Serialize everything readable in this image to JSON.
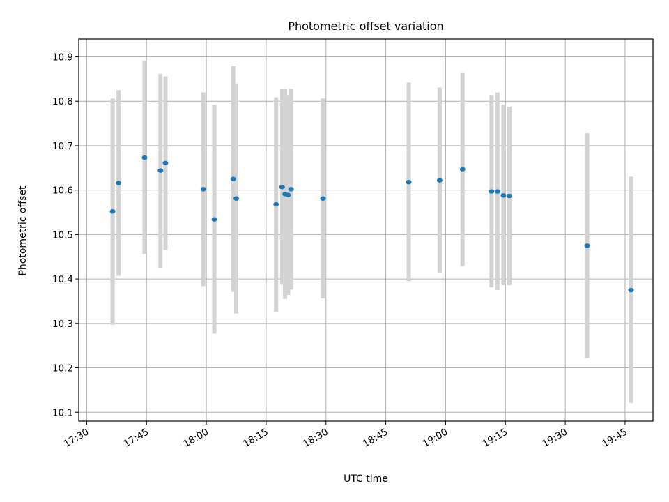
{
  "chart_data": {
    "type": "scatter",
    "title": "Photometric offset variation",
    "xlabel": "UTC time",
    "ylabel": "Photometric offset",
    "x_ticks": [
      "17:30",
      "17:45",
      "18:00",
      "18:15",
      "18:30",
      "18:45",
      "19:00",
      "19:15",
      "19:30",
      "19:45"
    ],
    "y_ticks": [
      "10.1",
      "10.2",
      "10.3",
      "10.4",
      "10.5",
      "10.6",
      "10.7",
      "10.8",
      "10.9"
    ],
    "xlim": [
      "17:28",
      "19:52"
    ],
    "ylim": [
      10.08,
      10.94
    ],
    "grid": true,
    "marker_color": "#1f77b4",
    "errorbar_color": "#d3d3d3",
    "points": [
      {
        "x": "17:36:30",
        "y": 10.552,
        "low": 10.297,
        "high": 10.806
      },
      {
        "x": "17:38:00",
        "y": 10.616,
        "low": 10.407,
        "high": 10.825
      },
      {
        "x": "17:44:30",
        "y": 10.673,
        "low": 10.456,
        "high": 10.891
      },
      {
        "x": "17:48:30",
        "y": 10.644,
        "low": 10.425,
        "high": 10.862
      },
      {
        "x": "17:49:45",
        "y": 10.661,
        "low": 10.465,
        "high": 10.856
      },
      {
        "x": "17:59:15",
        "y": 10.602,
        "low": 10.384,
        "high": 10.82
      },
      {
        "x": "18:02:00",
        "y": 10.534,
        "low": 10.277,
        "high": 10.791
      },
      {
        "x": "18:06:45",
        "y": 10.625,
        "low": 10.371,
        "high": 10.879
      },
      {
        "x": "18:07:30",
        "y": 10.581,
        "low": 10.322,
        "high": 10.84
      },
      {
        "x": "18:17:30",
        "y": 10.568,
        "low": 10.326,
        "high": 10.809
      },
      {
        "x": "18:19:00",
        "y": 10.607,
        "low": 10.387,
        "high": 10.827
      },
      {
        "x": "18:19:45",
        "y": 10.591,
        "low": 10.355,
        "high": 10.827
      },
      {
        "x": "18:20:30",
        "y": 10.589,
        "low": 10.364,
        "high": 10.814
      },
      {
        "x": "18:21:15",
        "y": 10.602,
        "low": 10.376,
        "high": 10.828
      },
      {
        "x": "18:29:15",
        "y": 10.581,
        "low": 10.356,
        "high": 10.806
      },
      {
        "x": "18:50:45",
        "y": 10.618,
        "low": 10.395,
        "high": 10.842
      },
      {
        "x": "18:58:30",
        "y": 10.622,
        "low": 10.413,
        "high": 10.831
      },
      {
        "x": "19:04:15",
        "y": 10.647,
        "low": 10.429,
        "high": 10.865
      },
      {
        "x": "19:11:30",
        "y": 10.597,
        "low": 10.381,
        "high": 10.814
      },
      {
        "x": "19:13:00",
        "y": 10.597,
        "low": 10.375,
        "high": 10.82
      },
      {
        "x": "19:14:30",
        "y": 10.588,
        "low": 10.386,
        "high": 10.792
      },
      {
        "x": "19:16:00",
        "y": 10.587,
        "low": 10.386,
        "high": 10.788
      },
      {
        "x": "19:35:30",
        "y": 10.475,
        "low": 10.222,
        "high": 10.728
      },
      {
        "x": "19:46:30",
        "y": 10.375,
        "low": 10.121,
        "high": 10.63
      }
    ]
  }
}
